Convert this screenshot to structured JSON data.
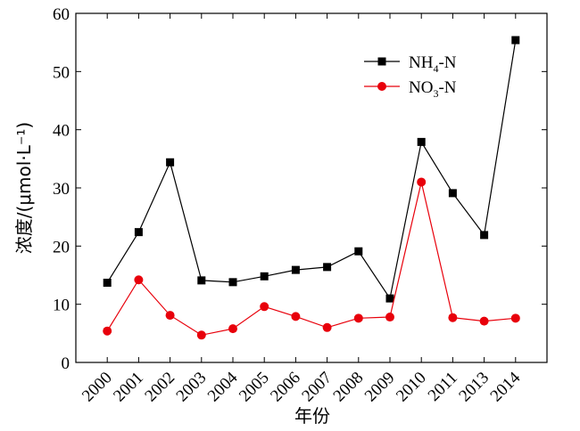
{
  "chart_data": {
    "type": "line",
    "xlabel": "年份",
    "ylabel": "浓度/(μmol·L⁻¹)",
    "ylim": [
      0,
      60
    ],
    "yticks": [
      "0",
      "10",
      "20",
      "30",
      "40",
      "50",
      "60"
    ],
    "categories": [
      "2000",
      "2001",
      "2002",
      "2003",
      "2004",
      "2005",
      "2006",
      "2007",
      "2008",
      "2009",
      "2010",
      "2011",
      "2013",
      "2014"
    ],
    "series": [
      {
        "name": "NH4-N",
        "legend_parts": [
          "NH",
          "4",
          "-N"
        ],
        "color": "#000000",
        "marker": "square",
        "values": [
          13.7,
          22.4,
          34.4,
          14.1,
          13.8,
          14.8,
          15.9,
          16.4,
          19.1,
          11.0,
          37.9,
          29.1,
          21.9,
          55.4
        ]
      },
      {
        "name": "NO3-N",
        "legend_parts": [
          "NO",
          "3",
          "-N"
        ],
        "color": "#e8000b",
        "marker": "circle",
        "values": [
          5.4,
          14.2,
          8.1,
          4.7,
          5.8,
          9.6,
          7.9,
          6.0,
          7.6,
          7.8,
          31.0,
          7.7,
          7.1,
          7.6
        ]
      }
    ],
    "legend_position": "top-right",
    "grid": false
  }
}
